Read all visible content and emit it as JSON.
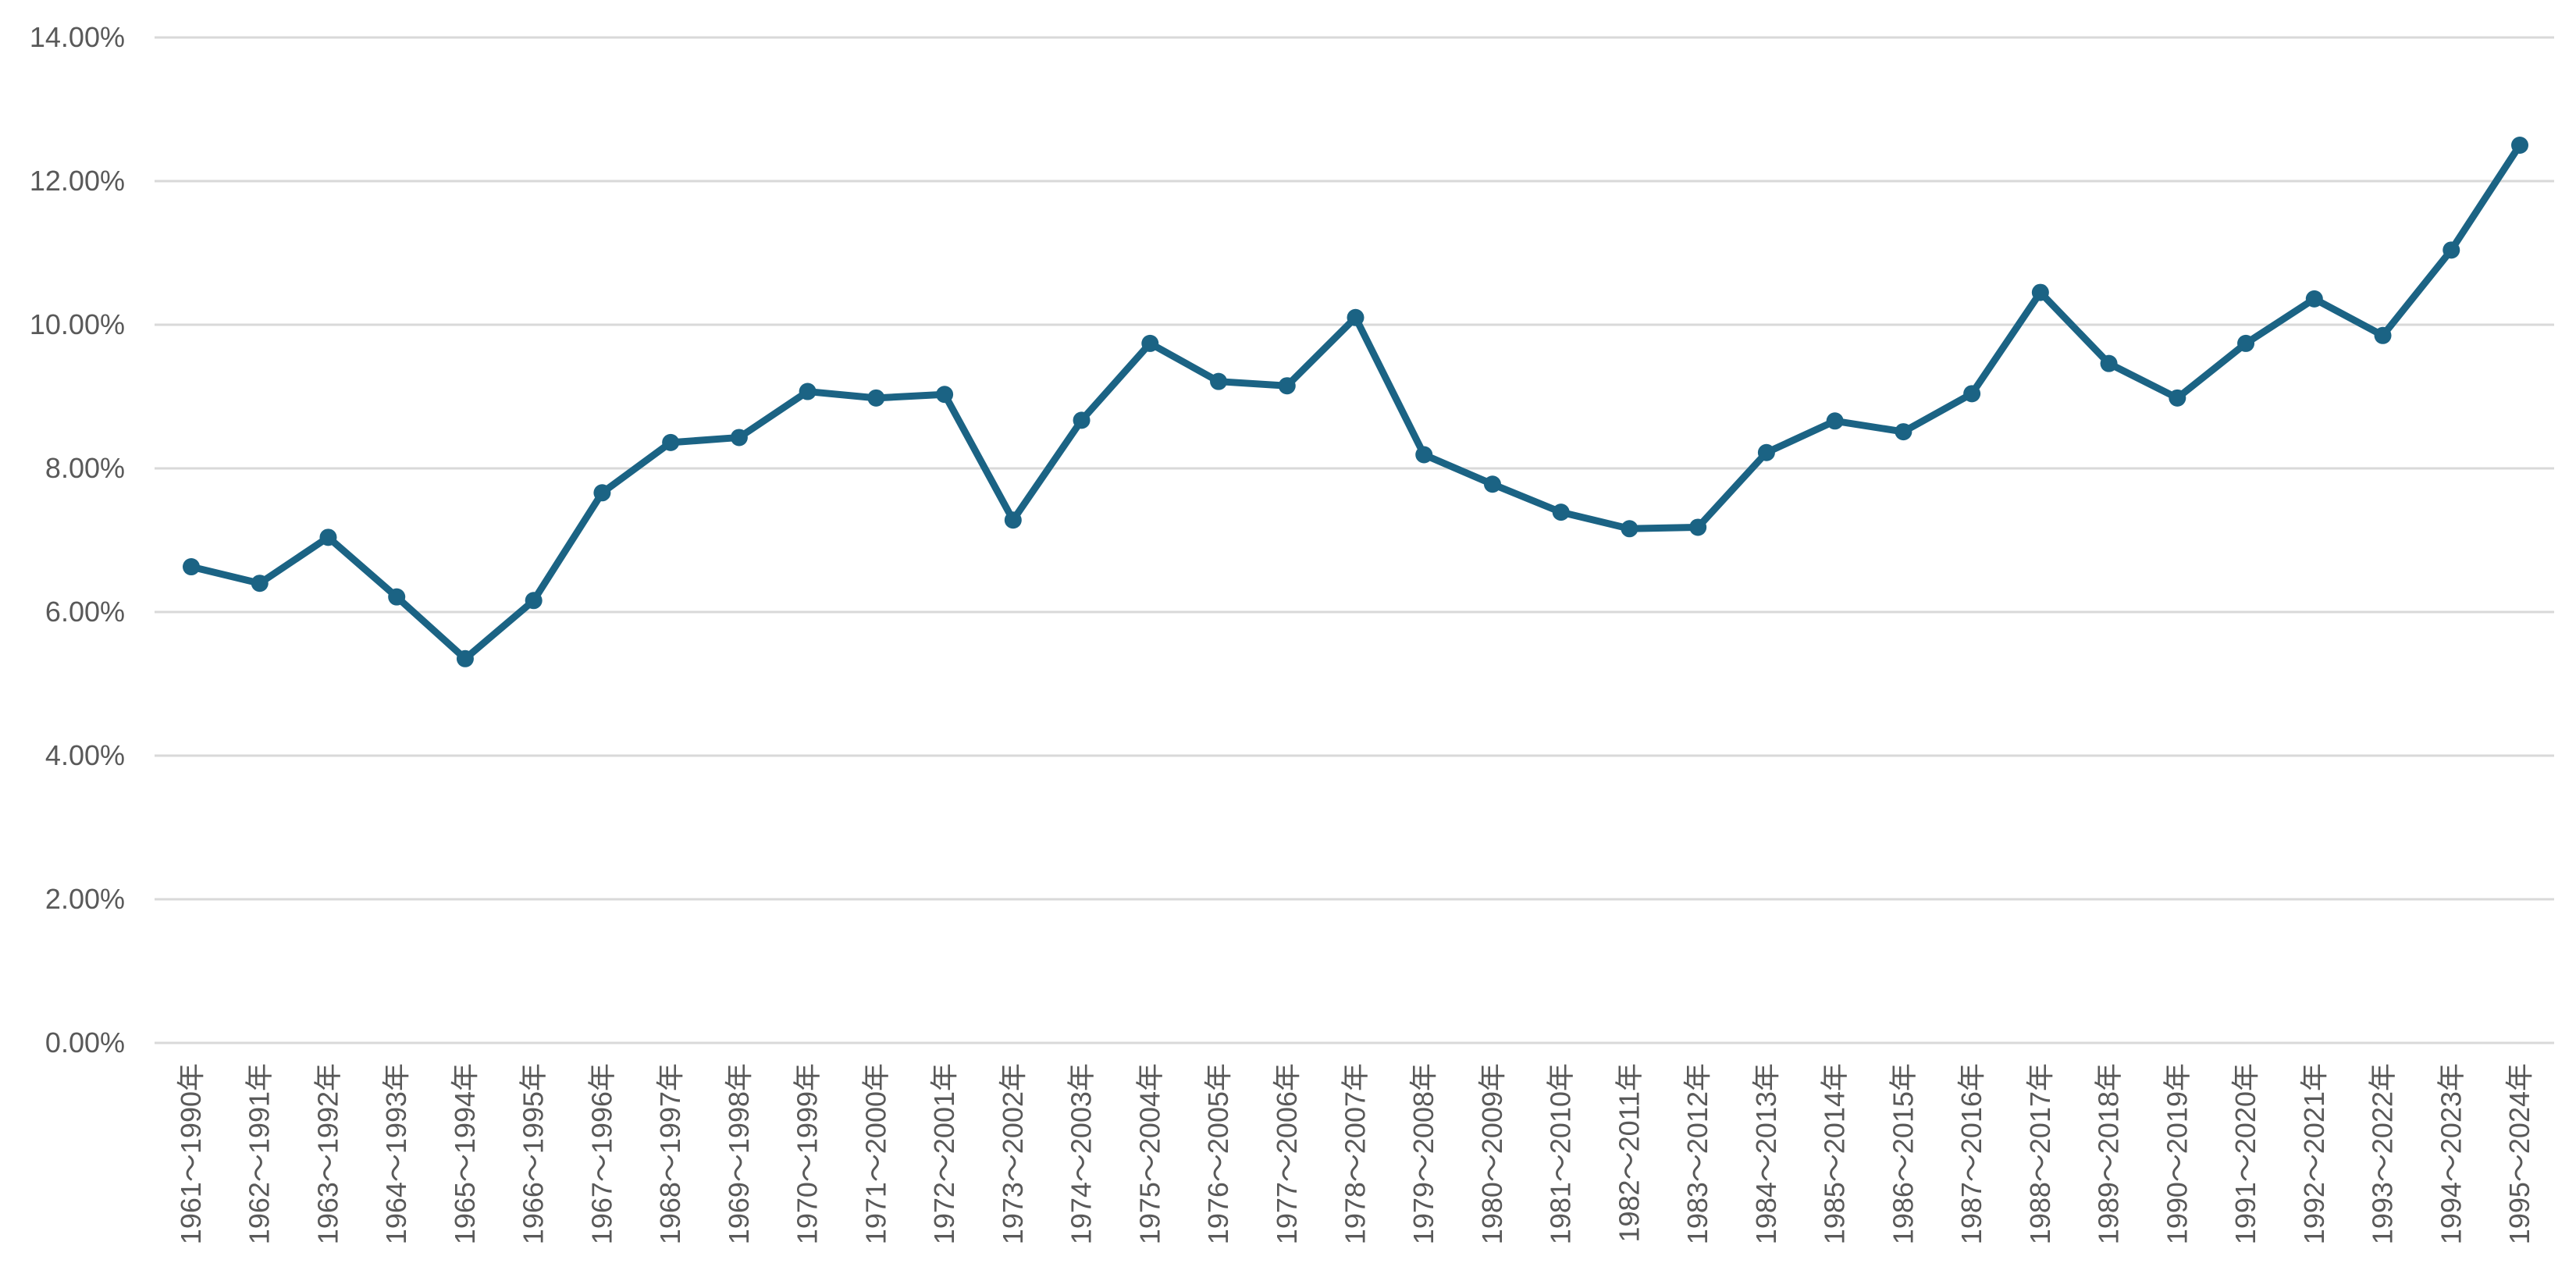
{
  "chart_data": {
    "type": "line",
    "title": "",
    "xlabel": "",
    "ylabel": "",
    "ylim": [
      0,
      0.14
    ],
    "y_ticks": [
      0,
      0.02,
      0.04,
      0.06,
      0.08,
      0.1,
      0.12,
      0.14
    ],
    "y_tick_labels": [
      "0.00%",
      "2.00%",
      "4.00%",
      "6.00%",
      "8.00%",
      "10.00%",
      "12.00%",
      "14.00%"
    ],
    "grid": true,
    "legend": "none",
    "categories": [
      "1961～1990年",
      "1962～1991年",
      "1963～1992年",
      "1964～1993年",
      "1965～1994年",
      "1966～1995年",
      "1967～1996年",
      "1968～1997年",
      "1969～1998年",
      "1970～1999年",
      "1971～2000年",
      "1972～2001年",
      "1973～2002年",
      "1974～2003年",
      "1975～2004年",
      "1976～2005年",
      "1977～2006年",
      "1978～2007年",
      "1979～2008年",
      "1980～2009年",
      "1981～2010年",
      "1982～2011年",
      "1983～2012年",
      "1984～2013年",
      "1985～2014年",
      "1986～2015年",
      "1987～2016年",
      "1988～2017年",
      "1989～2018年",
      "1990～2019年",
      "1991～2020年",
      "1992～2021年",
      "1993～2022年",
      "1994～2023年",
      "1995～2024年"
    ],
    "series": [
      {
        "color": "#1b6384",
        "values": [
          0.0663,
          0.064,
          0.0704,
          0.0621,
          0.0535,
          0.0616,
          0.0766,
          0.0836,
          0.0843,
          0.0907,
          0.0898,
          0.0903,
          0.0728,
          0.0867,
          0.0974,
          0.0921,
          0.0915,
          0.101,
          0.0819,
          0.0778,
          0.0739,
          0.0716,
          0.0718,
          0.0822,
          0.0866,
          0.0851,
          0.0904,
          0.1045,
          0.0946,
          0.0898,
          0.0974,
          0.1036,
          0.0985,
          0.1104,
          0.125
        ]
      }
    ]
  }
}
